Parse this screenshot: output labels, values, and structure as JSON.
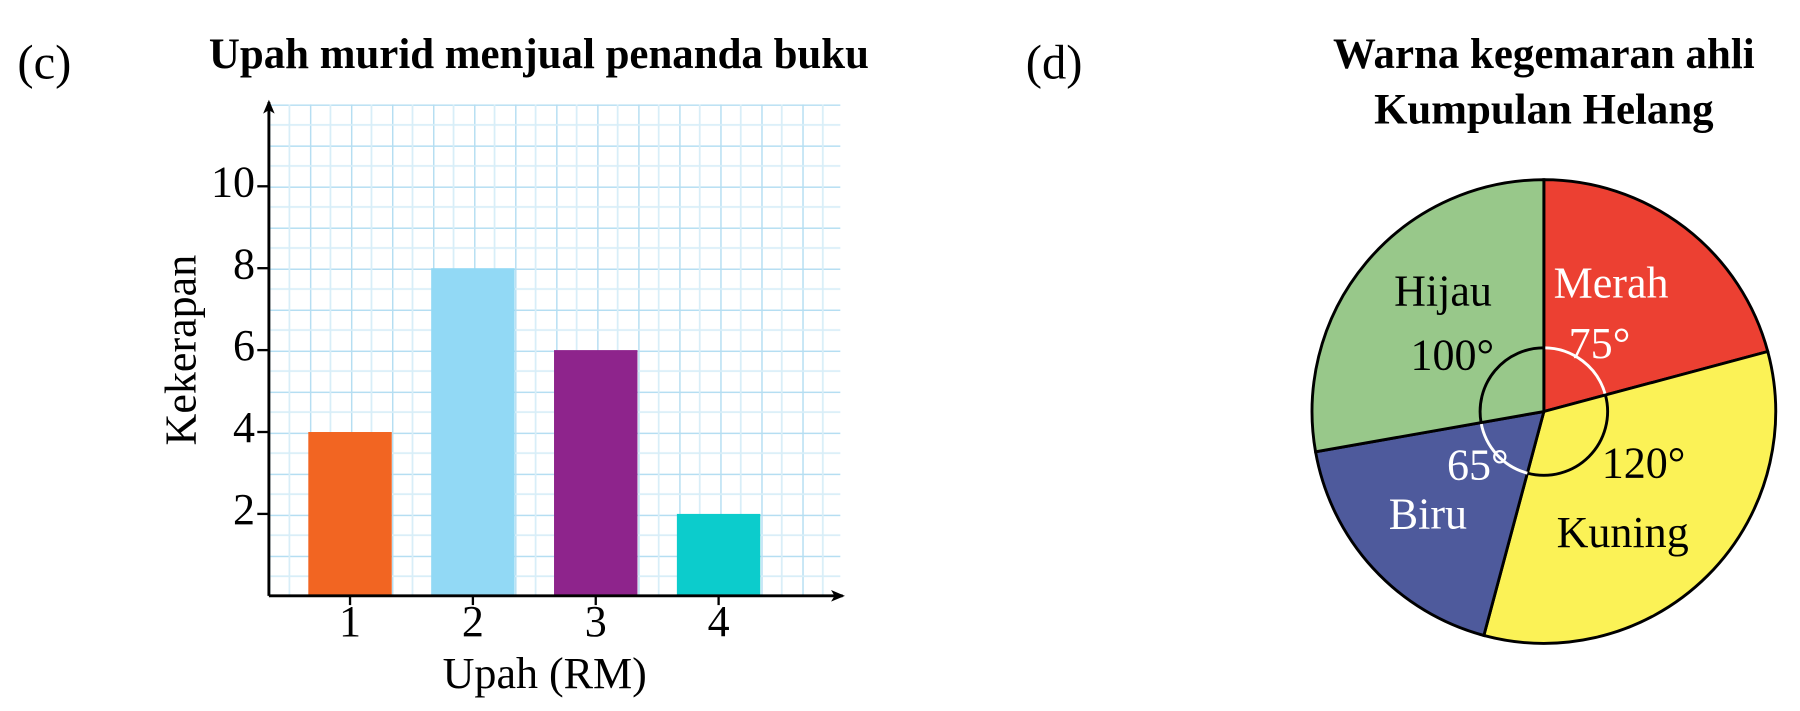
{
  "chart_data": [
    {
      "type": "bar",
      "label": "(c)",
      "title": "Upah murid menjual penanda buku",
      "x_label": "Upah (RM)",
      "y_label": "Kekerapan",
      "categories": [
        "1",
        "2",
        "3",
        "4"
      ],
      "values": [
        4,
        8,
        6,
        2
      ],
      "colors": [
        "#f26522",
        "#92d9f5",
        "#8e248c",
        "#0ccccc"
      ],
      "ylim": [
        0,
        12
      ],
      "yticks": [
        2,
        4,
        6,
        8,
        10
      ]
    },
    {
      "type": "pie",
      "label": "(d)",
      "title": [
        "Warna kegemaran ahli",
        "Kumpulan Helang"
      ],
      "categories": [
        "Merah",
        "Kuning",
        "Biru",
        "Hijau"
      ],
      "values": [
        75,
        120,
        65,
        100
      ],
      "value_labels": [
        "75°",
        "120°",
        "65°",
        "100°"
      ],
      "colors": [
        "#ec4032",
        "#fbf256",
        "#4e5a9c",
        "#98c88a"
      ],
      "label_colors": [
        "#ffffff",
        "#000000",
        "#ffffff",
        "#000000"
      ]
    }
  ]
}
